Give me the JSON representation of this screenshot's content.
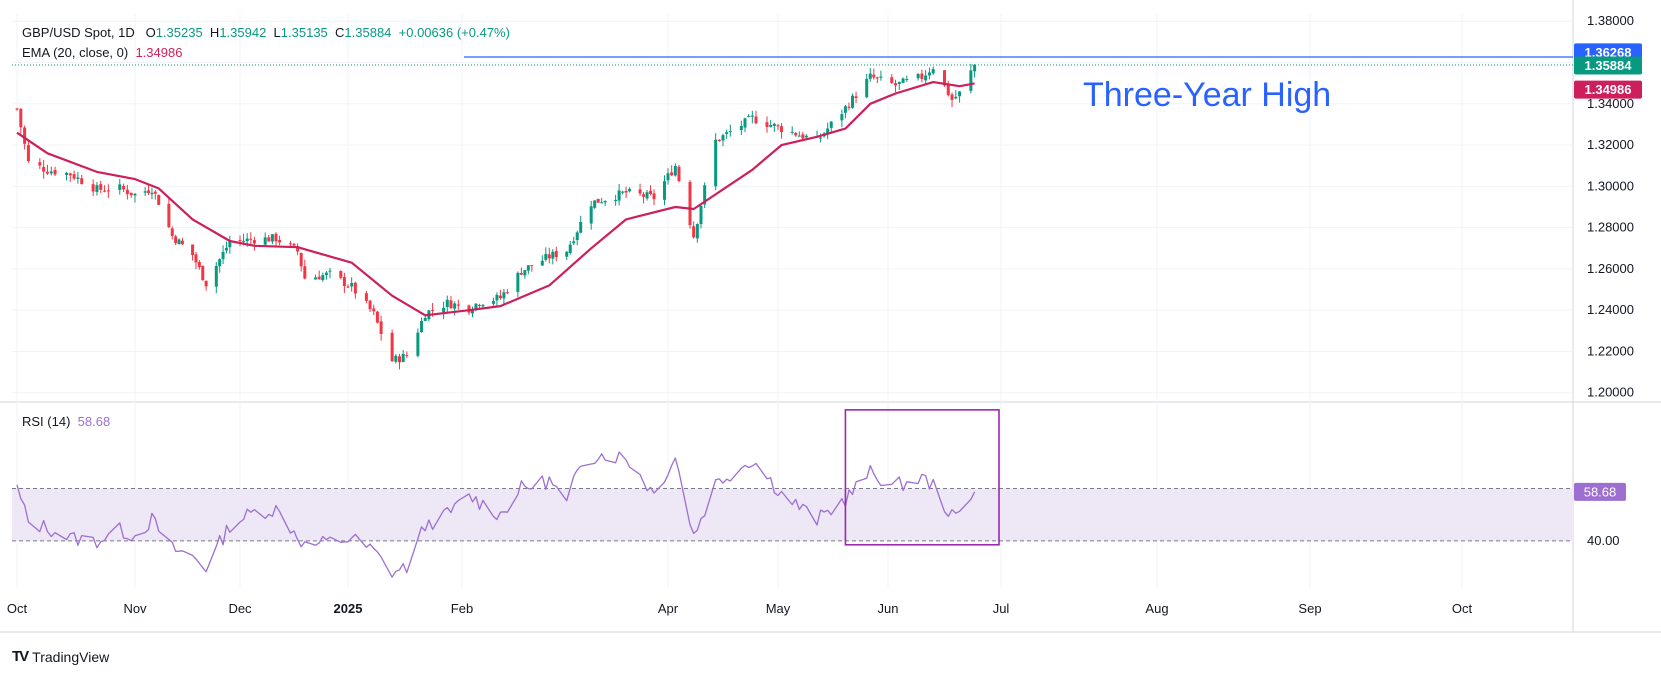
{
  "header": {
    "symbol": "GBP/USD Spot, 1D",
    "o_label": "O",
    "o_value": "1.35235",
    "h_label": "H",
    "h_value": "1.35942",
    "l_label": "L",
    "l_value": "1.35135",
    "c_label": "C",
    "c_value": "1.35884",
    "change": "+0.00636 (+0.47%)",
    "ema_label": "EMA (20, close, 0)",
    "ema_value": "1.34986",
    "rsi_label": "RSI (14)",
    "rsi_value": "58.68"
  },
  "annotation": "Three-Year High",
  "branding": "TradingView",
  "colors": {
    "up": "#089981",
    "down": "#f23645",
    "ema": "#cc1f5c",
    "resistance": "#2962ff",
    "rsi": "#9c6fd1",
    "rsi_band": "#ede7f6",
    "highlight_box": "#9c27b0",
    "price_tag_bg": "#089981",
    "ema_tag_bg": "#cc1f5c",
    "resistance_tag_bg": "#2962ff",
    "rsi_tag_bg": "#9c6fd1"
  },
  "chart_data": [
    {
      "type": "candlestick",
      "title": "GBP/USD Spot, 1D",
      "y_ticks": [
        "1.38000",
        "1.36000",
        "1.34000",
        "1.32000",
        "1.30000",
        "1.28000",
        "1.26000",
        "1.24000",
        "1.22000",
        "1.20000"
      ],
      "ylim": [
        1.196,
        1.3835
      ],
      "x_ticks": [
        "Oct",
        "Nov",
        "Dec",
        "2025",
        "Feb",
        "Apr",
        "May",
        "Jun",
        "Jul",
        "Aug",
        "Sep",
        "Oct"
      ],
      "grid": true,
      "price_tags": {
        "resistance": "1.36268",
        "last_close": "1.35884",
        "ema": "1.34986"
      },
      "resistance_level": 1.36268,
      "close_series": [
        [
          "2024-10-01",
          1.3376
        ],
        [
          "2024-10-04",
          1.3115
        ],
        [
          "2024-10-09",
          1.3079
        ],
        [
          "2024-10-15",
          1.306
        ],
        [
          "2024-10-22",
          1.2985
        ],
        [
          "2024-10-28",
          1.299
        ],
        [
          "2024-11-01",
          1.296
        ],
        [
          "2024-11-06",
          1.299
        ],
        [
          "2024-11-08",
          1.2925
        ],
        [
          "2024-11-12",
          1.276
        ],
        [
          "2024-11-18",
          1.2668
        ],
        [
          "2024-11-22",
          1.253
        ],
        [
          "2024-11-29",
          1.2733
        ],
        [
          "2024-12-06",
          1.2743
        ],
        [
          "2024-12-12",
          1.2748
        ],
        [
          "2024-12-18",
          1.2685
        ],
        [
          "2024-12-20",
          1.2555
        ],
        [
          "2024-12-27",
          1.2574
        ],
        [
          "2025-01-02",
          1.2513
        ],
        [
          "2025-01-08",
          1.238
        ],
        [
          "2025-01-13",
          1.2155
        ],
        [
          "2025-01-17",
          1.218
        ],
        [
          "2025-01-22",
          1.2385
        ],
        [
          "2025-01-28",
          1.2435
        ],
        [
          "2025-02-03",
          1.241
        ],
        [
          "2025-02-06",
          1.244
        ],
        [
          "2025-02-12",
          1.246
        ],
        [
          "2025-02-18",
          1.259
        ],
        [
          "2025-02-26",
          1.266
        ],
        [
          "2025-03-03",
          1.269
        ],
        [
          "2025-03-10",
          1.292
        ],
        [
          "2025-03-20",
          1.297
        ],
        [
          "2025-03-28",
          1.2945
        ],
        [
          "2025-04-03",
          1.31
        ],
        [
          "2025-04-08",
          1.276
        ],
        [
          "2025-04-14",
          1.322
        ],
        [
          "2025-04-24",
          1.333
        ],
        [
          "2025-05-02",
          1.328
        ],
        [
          "2025-05-12",
          1.322
        ],
        [
          "2025-05-20",
          1.338
        ],
        [
          "2025-05-27",
          1.353
        ],
        [
          "2025-06-03",
          1.349
        ],
        [
          "2025-06-10",
          1.353
        ],
        [
          "2025-06-13",
          1.358
        ],
        [
          "2025-06-18",
          1.342
        ],
        [
          "2025-06-20",
          1.345
        ],
        [
          "2025-06-24",
          1.3588
        ]
      ],
      "ema_series": [
        [
          "2024-10-01",
          1.326
        ],
        [
          "2024-10-09",
          1.316
        ],
        [
          "2024-10-22",
          1.307
        ],
        [
          "2024-11-01",
          1.3035
        ],
        [
          "2024-11-08",
          1.299
        ],
        [
          "2024-11-18",
          1.284
        ],
        [
          "2024-11-29",
          1.2735
        ],
        [
          "2024-12-06",
          1.2712
        ],
        [
          "2024-12-18",
          1.2705
        ],
        [
          "2025-01-02",
          1.263
        ],
        [
          "2025-01-13",
          1.247
        ],
        [
          "2025-01-22",
          1.2375
        ],
        [
          "2025-02-03",
          1.24
        ],
        [
          "2025-02-12",
          1.242
        ],
        [
          "2025-02-26",
          1.252
        ],
        [
          "2025-03-10",
          1.27
        ],
        [
          "2025-03-20",
          1.284
        ],
        [
          "2025-04-03",
          1.29
        ],
        [
          "2025-04-08",
          1.289
        ],
        [
          "2025-04-24",
          1.308
        ],
        [
          "2025-05-02",
          1.32
        ],
        [
          "2025-05-12",
          1.324
        ],
        [
          "2025-05-20",
          1.328
        ],
        [
          "2025-05-27",
          1.34
        ],
        [
          "2025-06-03",
          1.345
        ],
        [
          "2025-06-13",
          1.3505
        ],
        [
          "2025-06-20",
          1.3485
        ],
        [
          "2025-06-24",
          1.3499
        ]
      ]
    },
    {
      "type": "line",
      "title": "RSI (14)",
      "y_ticks": [
        "40.00"
      ],
      "reference_lines": [
        40,
        60
      ],
      "ylim": [
        22,
        93
      ],
      "value_tag": "58.68",
      "series": [
        [
          "2024-10-01",
          60
        ],
        [
          "2024-10-04",
          47
        ],
        [
          "2024-10-09",
          45
        ],
        [
          "2024-10-15",
          41
        ],
        [
          "2024-10-22",
          40
        ],
        [
          "2024-10-28",
          44
        ],
        [
          "2024-11-01",
          42
        ],
        [
          "2024-11-06",
          48
        ],
        [
          "2024-11-12",
          37
        ],
        [
          "2024-11-18",
          34
        ],
        [
          "2024-11-22",
          30
        ],
        [
          "2024-11-29",
          46
        ],
        [
          "2024-12-06",
          51
        ],
        [
          "2024-12-12",
          52
        ],
        [
          "2024-12-18",
          42
        ],
        [
          "2024-12-20",
          38
        ],
        [
          "2025-01-02",
          41
        ],
        [
          "2025-01-08",
          36
        ],
        [
          "2025-01-13",
          28
        ],
        [
          "2025-01-17",
          30
        ],
        [
          "2025-01-22",
          46
        ],
        [
          "2025-01-28",
          50
        ],
        [
          "2025-02-03",
          57
        ],
        [
          "2025-02-12",
          50
        ],
        [
          "2025-02-18",
          60
        ],
        [
          "2025-02-26",
          63
        ],
        [
          "2025-03-03",
          54
        ],
        [
          "2025-03-07",
          70
        ],
        [
          "2025-03-12",
          73
        ],
        [
          "2025-03-20",
          72
        ],
        [
          "2025-03-28",
          58
        ],
        [
          "2025-04-03",
          72
        ],
        [
          "2025-04-08",
          42
        ],
        [
          "2025-04-14",
          62
        ],
        [
          "2025-04-24",
          71
        ],
        [
          "2025-05-02",
          58
        ],
        [
          "2025-05-12",
          48
        ],
        [
          "2025-05-20",
          56
        ],
        [
          "2025-05-27",
          66
        ],
        [
          "2025-06-03",
          61
        ],
        [
          "2025-06-10",
          64
        ],
        [
          "2025-06-13",
          61
        ],
        [
          "2025-06-18",
          49
        ],
        [
          "2025-06-20",
          50
        ],
        [
          "2025-06-24",
          58.68
        ]
      ]
    }
  ]
}
